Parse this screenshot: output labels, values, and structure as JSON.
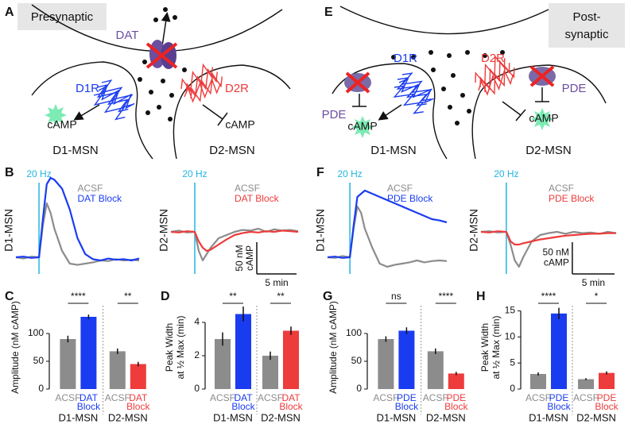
{
  "diagrams": [
    {
      "panel": "A",
      "box_label": "Presynaptic",
      "transporter": "DAT",
      "receptors": [
        "D1R",
        "D2R"
      ],
      "messengers": [
        "cAMP",
        "cAMP"
      ],
      "cells": [
        "D1-MSN",
        "D2-MSN"
      ]
    },
    {
      "panel": "E",
      "box_label": [
        "Post-",
        "synaptic"
      ],
      "receptors": [
        "D1R",
        "D2R"
      ],
      "enzymes": [
        "PDE",
        "PDE"
      ],
      "messengers": [
        "cAMP",
        "cAMP"
      ],
      "cells": [
        "D1-MSN",
        "D2-MSN"
      ]
    }
  ],
  "chart_data": [
    {
      "type": "line",
      "panel": "B",
      "ylabel": "D1-MSN",
      "stim": {
        "x": 3,
        "label": "20 Hz"
      },
      "xlim": [
        0,
        16
      ],
      "ylim": [
        -20,
        140
      ],
      "x": [
        0,
        1,
        2,
        3,
        3.5,
        4,
        4.5,
        5,
        6,
        7,
        8,
        9,
        10,
        11,
        12,
        13,
        14,
        15,
        16
      ],
      "series": [
        {
          "name": "ACSF",
          "color": "#8c8c8c",
          "values": [
            0,
            -2,
            1,
            0,
            50,
            85,
            70,
            45,
            10,
            -10,
            -12,
            -10,
            -8,
            -5,
            -6,
            -3,
            -5,
            -4,
            -5
          ]
        },
        {
          "name": "DAT Block",
          "color": "#1a3cf0",
          "values": [
            0,
            1,
            -1,
            0,
            60,
            115,
            125,
            122,
            108,
            75,
            30,
            5,
            -3,
            -5,
            -2,
            -4,
            -3,
            -5,
            -2
          ]
        }
      ]
    },
    {
      "type": "line",
      "ylabel": "D2-MSN",
      "stim": {
        "x": 3,
        "label": "20 Hz"
      },
      "xlim": [
        0,
        16
      ],
      "ylim": [
        -60,
        100
      ],
      "x": [
        0,
        1,
        2,
        3,
        3.5,
        4,
        4.5,
        5,
        6,
        7,
        8,
        9,
        10,
        11,
        12,
        13,
        14,
        15,
        16
      ],
      "series": [
        {
          "name": "ACSF",
          "color": "#8c8c8c",
          "values": [
            0,
            2,
            -1,
            0,
            -30,
            -45,
            -35,
            -25,
            -10,
            -5,
            0,
            3,
            2,
            5,
            0,
            4,
            2,
            3,
            1
          ]
        },
        {
          "name": "DAT Block",
          "color": "#ee3b3b",
          "values": [
            0,
            -1,
            1,
            0,
            -15,
            -25,
            -30,
            -28,
            -20,
            -12,
            -5,
            -2,
            0,
            -1,
            1,
            0,
            2,
            1,
            0
          ]
        }
      ],
      "scale_bar": {
        "y": 50,
        "y_label": [
          "50 nM",
          "cAMP"
        ],
        "y_label_rotated": true,
        "x": 5,
        "x_label": "5 min"
      }
    },
    {
      "type": "line",
      "panel": "F",
      "ylabel": "D1-MSN",
      "stim": {
        "x": 3,
        "label": "20 Hz"
      },
      "xlim": [
        0,
        16
      ],
      "ylim": [
        -20,
        140
      ],
      "x": [
        0,
        1,
        2,
        3,
        3.5,
        4,
        4.5,
        5,
        6,
        7,
        8,
        9,
        10,
        11,
        12,
        13,
        14,
        15,
        16
      ],
      "series": [
        {
          "name": "ACSF",
          "color": "#8c8c8c",
          "values": [
            0,
            -1,
            2,
            0,
            45,
            80,
            70,
            45,
            15,
            -10,
            -15,
            -12,
            -10,
            -8,
            -5,
            -8,
            -6,
            -5,
            -6
          ]
        },
        {
          "name": "PDE Block",
          "color": "#1a3cf0",
          "values": [
            0,
            1,
            -1,
            0,
            50,
            95,
            100,
            105,
            100,
            95,
            90,
            85,
            80,
            75,
            70,
            65,
            60,
            58,
            55
          ]
        }
      ]
    },
    {
      "type": "line",
      "ylabel": "D2-MSN",
      "stim": {
        "x": 3,
        "label": "20 Hz"
      },
      "xlim": [
        0,
        16
      ],
      "ylim": [
        -60,
        100
      ],
      "x": [
        0,
        1,
        2,
        3,
        3.5,
        4,
        4.5,
        5,
        6,
        7,
        8,
        9,
        10,
        11,
        12,
        13,
        14,
        15,
        16
      ],
      "series": [
        {
          "name": "ACSF",
          "color": "#8c8c8c",
          "values": [
            0,
            1,
            -1,
            0,
            -20,
            -45,
            -55,
            -40,
            -15,
            -5,
            -2,
            0,
            -3,
            0,
            -2,
            -1,
            -3,
            0,
            -2
          ]
        },
        {
          "name": "PDE Block",
          "color": "#ee3b3b",
          "values": [
            0,
            -1,
            1,
            0,
            -15,
            -20,
            -20,
            -18,
            -15,
            -12,
            -10,
            -8,
            -6,
            -5,
            -4,
            -3,
            -3,
            -2,
            -2
          ]
        }
      ],
      "scale_bar": {
        "y": 50,
        "y_label": [
          "50 nM",
          "cAMP"
        ],
        "y_label_rotated": false,
        "x": 5,
        "x_label": "5 min"
      }
    },
    {
      "type": "bar",
      "panel": "C",
      "ylabel": [
        "Amplitude (nM cAMP)"
      ],
      "ylim": [
        0,
        150
      ],
      "yticks": [
        0,
        50,
        100
      ],
      "categories": [
        "ACSF",
        "DAT Block",
        "ACSF",
        "DAT Block"
      ],
      "colors": [
        "#8c8c8c",
        "#1a3cf0",
        "#8c8c8c",
        "#ee3b3b"
      ],
      "values": [
        90,
        130,
        68,
        45
      ],
      "errors": [
        6,
        4,
        5,
        4
      ],
      "groups": [
        "D1-MSN",
        "D2-MSN"
      ],
      "significance": [
        "****",
        "**"
      ]
    },
    {
      "type": "bar",
      "panel": "D",
      "ylabel": [
        "Peak Width",
        "at ½ Max (min)"
      ],
      "ylim": [
        0,
        5
      ],
      "yticks": [
        0,
        2,
        4
      ],
      "categories": [
        "ACSF",
        "DAT Block",
        "ACSF",
        "DAT Block"
      ],
      "colors": [
        "#8c8c8c",
        "#1a3cf0",
        "#8c8c8c",
        "#ee3b3b"
      ],
      "values": [
        3.0,
        4.5,
        2.0,
        3.5
      ],
      "errors": [
        0.4,
        0.45,
        0.25,
        0.25
      ],
      "groups": [
        "D1-MSN",
        "D2-MSN"
      ],
      "significance": [
        "**",
        "**"
      ]
    },
    {
      "type": "bar",
      "panel": "G",
      "ylabel": [
        "Amplitude (nM cAMP)"
      ],
      "ylim": [
        0,
        150
      ],
      "yticks": [
        0,
        50,
        100
      ],
      "categories": [
        "ACSF",
        "PDE Block",
        "ACSF",
        "PDE Block"
      ],
      "colors": [
        "#8c8c8c",
        "#1a3cf0",
        "#8c8c8c",
        "#ee3b3b"
      ],
      "values": [
        90,
        105,
        68,
        28
      ],
      "errors": [
        5,
        6,
        5,
        3
      ],
      "groups": [
        "D1-MSN",
        "D2-MSN"
      ],
      "significance": [
        "ns",
        "****"
      ]
    },
    {
      "type": "bar",
      "panel": "H",
      "ylabel": [
        "Peak Width",
        "at ½ Max (min)"
      ],
      "ylim": [
        0,
        16
      ],
      "yticks": [
        0,
        5,
        10,
        15
      ],
      "categories": [
        "ACSF",
        "PDE Block",
        "ACSF",
        "PDE Block"
      ],
      "colors": [
        "#8c8c8c",
        "#1a3cf0",
        "#8c8c8c",
        "#ee3b3b"
      ],
      "values": [
        2.9,
        14.5,
        1.9,
        3.1
      ],
      "errors": [
        0.3,
        1.1,
        0.2,
        0.3
      ],
      "groups": [
        "D1-MSN",
        "D2-MSN"
      ],
      "significance": [
        "****",
        "*"
      ]
    }
  ]
}
